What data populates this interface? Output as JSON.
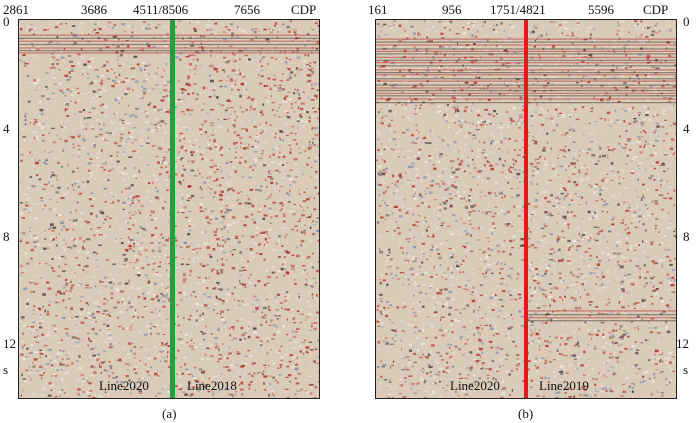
{
  "panel_a": {
    "cdp_labels": [
      "2861",
      "3686",
      "4511/8506",
      "7656",
      "CDP"
    ],
    "time_labels": [
      "0",
      "4",
      "8",
      "12",
      "s"
    ],
    "left_line": "Line2020",
    "right_line": "Line2018",
    "divider_color": "#21a03c",
    "caption": "(a)"
  },
  "panel_b": {
    "cdp_labels": [
      "161",
      "956",
      "1751/4821",
      "5596",
      "CDP"
    ],
    "time_labels": [
      "0",
      "4",
      "8",
      "12",
      "s"
    ],
    "left_line": "Line2020",
    "right_line": "Line2019",
    "divider_color": "#e11a1a",
    "caption": "(b)"
  },
  "noise_colors": {
    "background": "#d9cbb8",
    "red": "#b0302a",
    "dark": "#4a3b36",
    "blue": "#7d8fa8",
    "light": "#f1ebe1"
  }
}
